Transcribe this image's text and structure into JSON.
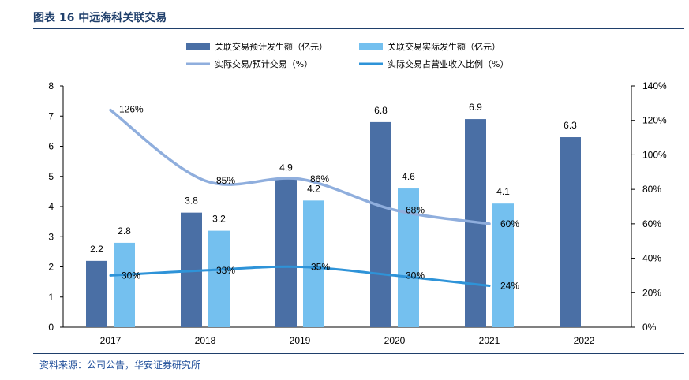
{
  "header": {
    "title": "图表 16 中远海科关联交易"
  },
  "footer": {
    "source": "资料来源：公司公告，华安证券研究所"
  },
  "colors": {
    "bar1": "#4a6fa5",
    "bar2": "#74c0ef",
    "line1": "#8faedd",
    "line2": "#2e93d8",
    "accent": "#1f3f6b"
  },
  "chart_data": {
    "type": "bar",
    "title": "",
    "categories": [
      "2017",
      "2018",
      "2019",
      "2020",
      "2021",
      "2022"
    ],
    "ylim": [
      0,
      8
    ],
    "y_ticks": [
      "0",
      "1",
      "2",
      "3",
      "4",
      "5",
      "6",
      "7",
      "8"
    ],
    "y2lim": [
      0,
      140
    ],
    "y2_ticks": [
      "0%",
      "20%",
      "40%",
      "60%",
      "80%",
      "100%",
      "120%",
      "140%"
    ],
    "legend_position": "top",
    "series": [
      {
        "name": "关联交易预计发生额（亿元）",
        "kind": "bar",
        "axis": "left",
        "values": [
          2.2,
          3.8,
          4.9,
          6.8,
          6.9,
          6.3
        ],
        "labels": [
          "2.2",
          "3.8",
          "4.9",
          "6.8",
          "6.9",
          "6.3"
        ]
      },
      {
        "name": "关联交易实际发生额（亿元）",
        "kind": "bar",
        "axis": "left",
        "values": [
          2.8,
          3.2,
          4.2,
          4.6,
          4.1,
          null
        ],
        "labels": [
          "2.8",
          "3.2",
          "4.2",
          "4.6",
          "4.1",
          ""
        ]
      },
      {
        "name": "实际交易/预计交易（%）",
        "kind": "line",
        "axis": "right",
        "values": [
          126,
          85,
          86,
          68,
          60,
          null
        ],
        "labels": [
          "126%",
          "85%",
          "86%",
          "68%",
          "60%",
          ""
        ]
      },
      {
        "name": "实际交易占营业收入比例（%）",
        "kind": "line",
        "axis": "right",
        "values": [
          30,
          33,
          35,
          30,
          24,
          null
        ],
        "labels": [
          "30%",
          "33%",
          "35%",
          "30%",
          "24%",
          ""
        ]
      }
    ]
  }
}
